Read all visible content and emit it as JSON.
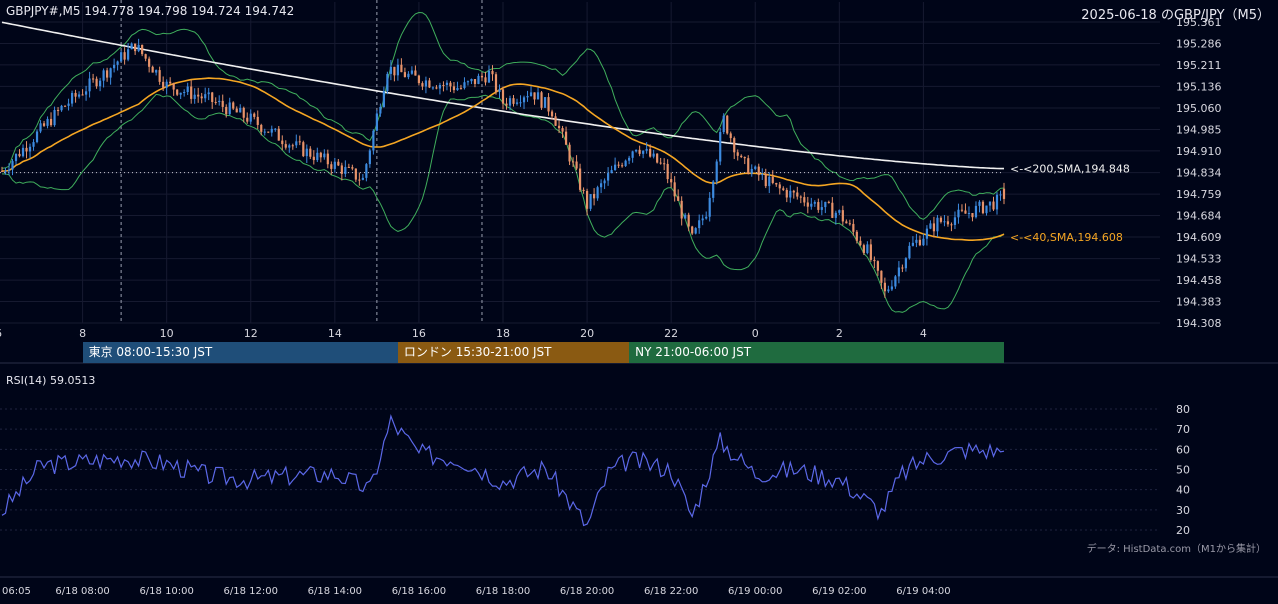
{
  "header": {
    "symbol_line": "GBPJPY#,M5 194.778 194.798 194.724 194.742",
    "title_right": "2025-06-18 のGBP/JPY（M5）"
  },
  "price_axis": {
    "labels": [
      "195.361",
      "195.286",
      "195.211",
      "195.136",
      "195.060",
      "194.985",
      "194.910",
      "194.834",
      "194.759",
      "194.684",
      "194.609",
      "194.533",
      "194.458",
      "194.383",
      "194.308"
    ],
    "ylim": [
      194.308,
      195.361
    ]
  },
  "hour_axis": {
    "labels": [
      "6",
      "8",
      "10",
      "12",
      "14",
      "16",
      "18",
      "20",
      "22",
      "0",
      "2",
      "4"
    ]
  },
  "ma_labels": {
    "sma200": "<-<200,SMA,194.848",
    "sma40": "<-<40,SMA,194.608"
  },
  "sessions": [
    {
      "label": "東京 08:00-15:30 JST",
      "color": "#1f4e79"
    },
    {
      "label": "ロンドン 15:30-21:00 JST",
      "color": "#8a5a12"
    },
    {
      "label": "NY 21:00-06:00 JST",
      "color": "#1f6b3f"
    }
  ],
  "rsi": {
    "title": "RSI(14) 59.0513",
    "axis_labels": [
      "80",
      "70",
      "60",
      "50",
      "40",
      "30",
      "20"
    ],
    "ylim": [
      20,
      80
    ]
  },
  "source_note": "データ: HistData.com（M1から集計）",
  "time_axis": {
    "labels": [
      "06:05",
      "6/18 08:00",
      "6/18 10:00",
      "6/18 12:00",
      "6/18 14:00",
      "6/18 16:00",
      "6/18 18:00",
      "6/18 20:00",
      "6/18 22:00",
      "6/19 00:00",
      "6/19 02:00",
      "6/19 04:00"
    ]
  },
  "colors": {
    "background": "#000518",
    "bull": "#3d8be0",
    "bear": "#e8936a",
    "sma40": "#f5a623",
    "sma200": "#f0f0f0",
    "bollinger": "#3fae5c",
    "rsi_line": "#5b68e8"
  },
  "chart_data": [
    {
      "type": "candlestick",
      "title": "",
      "symbol": "GBPJPY#,M5",
      "timeframe": "M5",
      "ylim": [
        194.308,
        195.361
      ],
      "x_range": [
        "06:05",
        "6/19 05:55"
      ],
      "last_ohlc": {
        "open": 194.778,
        "high": 194.798,
        "low": 194.724,
        "close": 194.742
      },
      "anchor_points": [
        {
          "time": "06:05",
          "price": 194.84
        },
        {
          "time": "07:30",
          "price": 195.06
        },
        {
          "time": "08:30",
          "price": 195.18
        },
        {
          "time": "09:15",
          "price": 195.28
        },
        {
          "time": "10:00",
          "price": 195.14
        },
        {
          "time": "11:00",
          "price": 195.09
        },
        {
          "time": "12:00",
          "price": 195.02
        },
        {
          "time": "13:00",
          "price": 194.93
        },
        {
          "time": "14:00",
          "price": 194.86
        },
        {
          "time": "14:40",
          "price": 194.81
        },
        {
          "time": "15:15",
          "price": 195.2
        },
        {
          "time": "16:00",
          "price": 195.16
        },
        {
          "time": "17:00",
          "price": 195.13
        },
        {
          "time": "17:40",
          "price": 195.18
        },
        {
          "time": "18:00",
          "price": 195.08
        },
        {
          "time": "18:40",
          "price": 195.12
        },
        {
          "time": "19:10",
          "price": 195.05
        },
        {
          "time": "19:40",
          "price": 194.86
        },
        {
          "time": "20:00",
          "price": 194.72
        },
        {
          "time": "20:30",
          "price": 194.82
        },
        {
          "time": "21:10",
          "price": 194.93
        },
        {
          "time": "21:50",
          "price": 194.85
        },
        {
          "time": "22:30",
          "price": 194.6
        },
        {
          "time": "22:50",
          "price": 194.7
        },
        {
          "time": "23:15",
          "price": 195.02
        },
        {
          "time": "23:40",
          "price": 194.87
        },
        {
          "time": "00:30",
          "price": 194.78
        },
        {
          "time": "01:20",
          "price": 194.73
        },
        {
          "time": "02:00",
          "price": 194.69
        },
        {
          "time": "02:40",
          "price": 194.56
        },
        {
          "time": "03:05",
          "price": 194.41
        },
        {
          "time": "03:40",
          "price": 194.57
        },
        {
          "time": "04:20",
          "price": 194.66
        },
        {
          "time": "05:00",
          "price": 194.69
        },
        {
          "time": "05:55",
          "price": 194.742
        }
      ],
      "sma40_last": 194.608,
      "sma200_last": 194.848,
      "sma200_start": 195.36,
      "series": [
        {
          "name": "200,SMA",
          "last": 194.848
        },
        {
          "name": "40,SMA",
          "last": 194.608
        }
      ]
    },
    {
      "type": "line",
      "title": "RSI(14) 59.0513",
      "ylim": [
        20,
        80
      ],
      "last_value": 59.0513,
      "x": [
        "06:05",
        "07:00",
        "08:00",
        "09:00",
        "10:00",
        "11:00",
        "12:00",
        "13:00",
        "14:00",
        "14:50",
        "15:20",
        "16:00",
        "17:00",
        "18:00",
        "19:00",
        "20:00",
        "20:30",
        "21:00",
        "22:00",
        "22:30",
        "23:10",
        "00:00",
        "01:00",
        "02:00",
        "03:00",
        "03:30",
        "04:00",
        "05:00",
        "05:55"
      ],
      "values": [
        29,
        52,
        54,
        56,
        53,
        47,
        45,
        47,
        48,
        40,
        74,
        58,
        55,
        44,
        51,
        22,
        48,
        55,
        50,
        27,
        64,
        48,
        50,
        45,
        29,
        48,
        55,
        60,
        59
      ]
    }
  ]
}
